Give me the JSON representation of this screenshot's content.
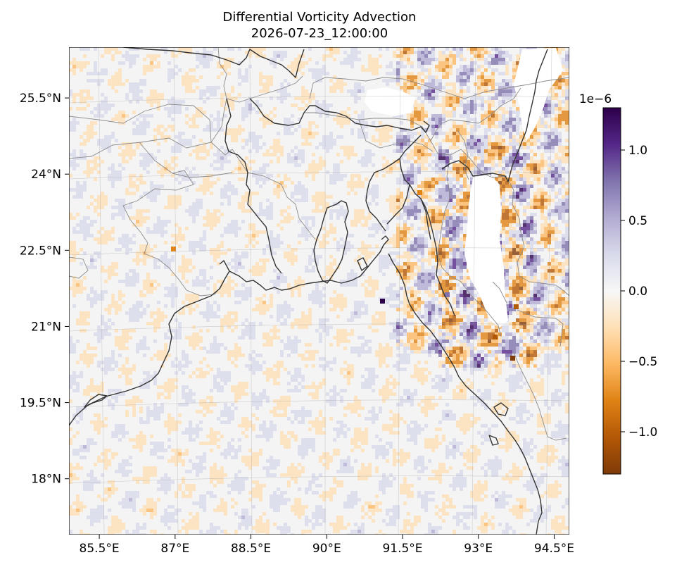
{
  "chart_data": {
    "type": "heatmap",
    "title": "Differential Vorticity Advection",
    "subtitle": "2026-07-23_12:00:00",
    "xlabel": "",
    "ylabel": "",
    "x_ticks": [
      "85.5°E",
      "87°E",
      "88.5°E",
      "90°E",
      "91.5°E",
      "93°E",
      "94.5°E"
    ],
    "y_ticks": [
      "25.5°N",
      "24°N",
      "22.5°N",
      "21°N",
      "19.5°N",
      "18°N"
    ],
    "x_tick_values": [
      85.5,
      87,
      88.5,
      90,
      91.5,
      93,
      94.5
    ],
    "y_tick_values": [
      25.5,
      24,
      22.5,
      21,
      19.5,
      18
    ],
    "xlim": [
      84.9,
      94.8
    ],
    "ylim": [
      16.9,
      26.5
    ],
    "grid": true,
    "colorbar": {
      "colormap": "PuOr",
      "range": [
        -1.3e-06,
        1.3e-06
      ],
      "scale_label": "1e−6",
      "tick_labels": [
        "1.0",
        "0.5",
        "0.0",
        "−0.5",
        "−1.0"
      ],
      "tick_values": [
        1.0,
        0.5,
        0.0,
        -0.5,
        -1.0
      ],
      "colors": [
        "#7f3b08",
        "#b35806",
        "#e08214",
        "#fdb863",
        "#fee0b6",
        "#f7f7f7",
        "#d8daeb",
        "#b2abd2",
        "#8073ac",
        "#542788",
        "#2d004b"
      ]
    },
    "features": [
      "coastlines",
      "country borders",
      "state borders",
      "lat/lon gridlines"
    ]
  }
}
